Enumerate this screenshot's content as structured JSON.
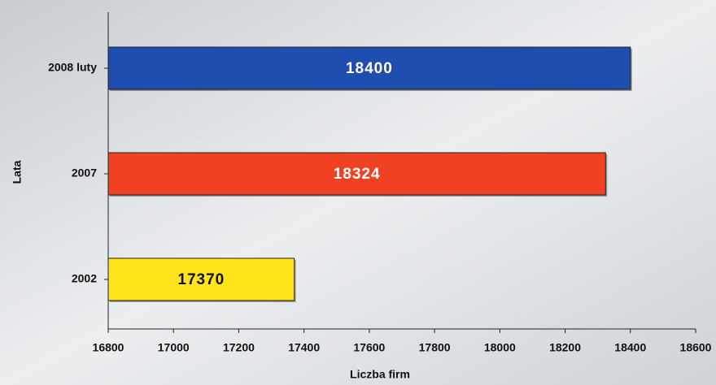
{
  "chart_data": {
    "type": "barh",
    "categories": [
      "2008 luty",
      "2007",
      "2002"
    ],
    "values": [
      18400,
      18324,
      17370
    ],
    "colors": [
      "#1f4db0",
      "#f04222",
      "#ffe41c"
    ],
    "xlim": [
      16800,
      18600
    ],
    "xticks": [
      16800,
      17000,
      17200,
      17400,
      17600,
      17800,
      18000,
      18200,
      18400,
      18600
    ],
    "xlabel": "Liczba firm",
    "ylabel": "Lata"
  }
}
